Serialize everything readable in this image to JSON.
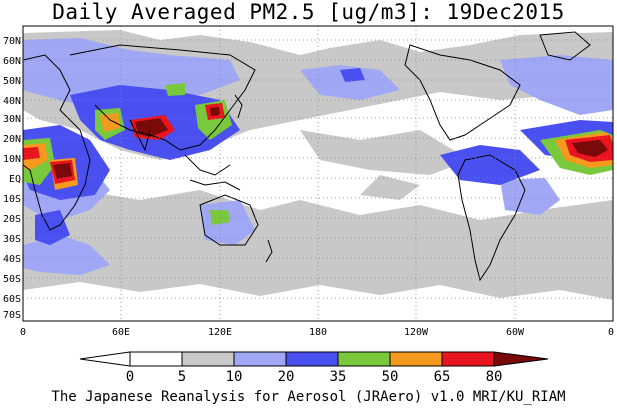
{
  "title": "Daily Averaged PM2.5 [ug/m3]: 19Dec2015",
  "credit": "The Japanese Reanalysis for Aerosol (JRAero) v1.0 MRI/KU_RIAM",
  "lat_labels": [
    "70N",
    "60N",
    "50N",
    "40N",
    "30N",
    "20N",
    "10N",
    "EQ",
    "10S",
    "20S",
    "30S",
    "40S",
    "50S",
    "60S",
    "70S"
  ],
  "lon_labels": [
    "0",
    "60E",
    "120E",
    "180",
    "120W",
    "60W",
    "0"
  ],
  "colorbar": {
    "labels": [
      "0",
      "5",
      "10",
      "20",
      "35",
      "50",
      "65",
      "80"
    ],
    "colors": [
      "#ffffff",
      "#ffffff",
      "#c8c8c8",
      "#a0a8f5",
      "#4a50f0",
      "#7ac83c",
      "#f59a1e",
      "#e8141e",
      "#7a0a0a"
    ]
  },
  "land_color": "#000000",
  "grid": "dotted"
}
